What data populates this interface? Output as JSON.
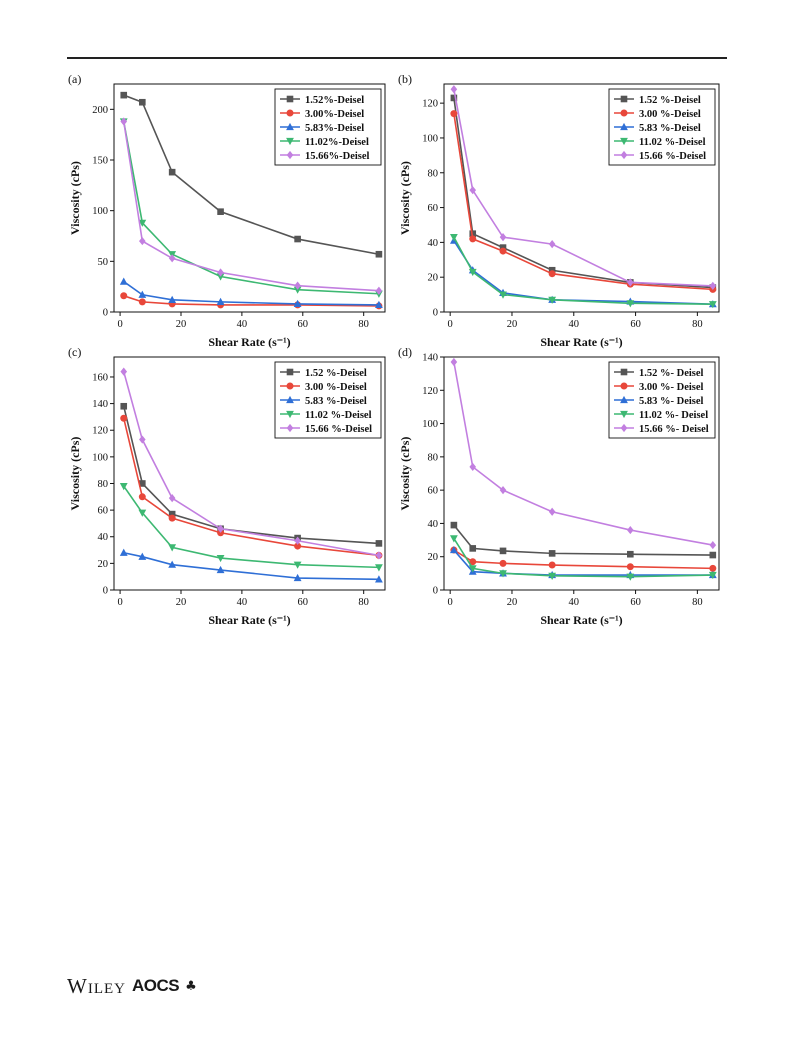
{
  "footer": {
    "publisher": "Wiley",
    "society": "AOCS",
    "society_mark": "♣"
  },
  "chart_data": [
    {
      "type": "line",
      "panel_label": "(a)",
      "xlabel": "Shear Rate (s⁻¹)",
      "ylabel": "Viscosity (cPs)",
      "xlim": [
        -2,
        87
      ],
      "ylim": [
        0,
        225
      ],
      "xticks": [
        0,
        20,
        40,
        60,
        80
      ],
      "yticks": [
        0,
        50,
        100,
        150,
        200
      ],
      "x": [
        1.2,
        7.3,
        17.1,
        33.0,
        58.3,
        85.0
      ],
      "series": [
        {
          "name": "1.52%-Deisel",
          "color": "#555555",
          "marker": "square",
          "values": [
            214,
            207,
            138,
            99,
            72,
            57
          ]
        },
        {
          "name": "3.00%-Deisel",
          "color": "#e8473a",
          "marker": "circle",
          "values": [
            16,
            10,
            8,
            7,
            7,
            6
          ]
        },
        {
          "name": "5.83%-Deisel",
          "color": "#2f6fd6",
          "marker": "triangle-up",
          "values": [
            30,
            17,
            12,
            10,
            8,
            7
          ]
        },
        {
          "name": "11.02%-Deisel",
          "color": "#3db872",
          "marker": "triangle-down",
          "values": [
            188,
            88,
            57,
            35,
            22,
            18
          ]
        },
        {
          "name": "15.66%-Deisel",
          "color": "#c27fe0",
          "marker": "diamond",
          "values": [
            188,
            70,
            53,
            39,
            26,
            21
          ]
        }
      ]
    },
    {
      "type": "line",
      "panel_label": "(b)",
      "xlabel": "Shear Rate (s⁻¹)",
      "ylabel": "Viscosity (cPs)",
      "xlim": [
        -2,
        87
      ],
      "ylim": [
        0,
        131
      ],
      "xticks": [
        0,
        20,
        40,
        60,
        80
      ],
      "yticks": [
        0,
        20,
        40,
        60,
        80,
        100,
        120
      ],
      "x": [
        1.2,
        7.3,
        17.1,
        33.0,
        58.3,
        85.0
      ],
      "series": [
        {
          "name": "1.52 %-Deisel",
          "color": "#555555",
          "marker": "square",
          "values": [
            123,
            45,
            37,
            24,
            17,
            14
          ]
        },
        {
          "name": "3.00 %-Deisel",
          "color": "#e8473a",
          "marker": "circle",
          "values": [
            114,
            42,
            35,
            22,
            16,
            13
          ]
        },
        {
          "name": "5.83 %-Deisel",
          "color": "#2f6fd6",
          "marker": "triangle-up",
          "values": [
            41,
            24,
            11,
            7,
            6,
            4.5
          ]
        },
        {
          "name": "11.02 %-Deisel",
          "color": "#3db872",
          "marker": "triangle-down",
          "values": [
            43,
            23,
            10,
            7,
            5,
            4.5
          ]
        },
        {
          "name": "15.66 %-Deisel",
          "color": "#c27fe0",
          "marker": "diamond",
          "values": [
            128,
            70,
            43,
            39,
            17,
            15
          ]
        }
      ]
    },
    {
      "type": "line",
      "panel_label": "(c)",
      "xlabel": "Shear Rate (s⁻¹)",
      "ylabel": "Viscosity (cPs)",
      "xlim": [
        -2,
        87
      ],
      "ylim": [
        0,
        175
      ],
      "xticks": [
        0,
        20,
        40,
        60,
        80
      ],
      "yticks": [
        0,
        20,
        40,
        60,
        80,
        100,
        120,
        140,
        160
      ],
      "x": [
        1.2,
        7.3,
        17.1,
        33.0,
        58.3,
        85.0
      ],
      "series": [
        {
          "name": "1.52 %-Deisel",
          "color": "#555555",
          "marker": "square",
          "values": [
            138,
            80,
            57,
            46,
            39,
            35
          ]
        },
        {
          "name": "3.00 %-Deisel",
          "color": "#e8473a",
          "marker": "circle",
          "values": [
            129,
            70,
            54,
            43,
            33,
            26
          ]
        },
        {
          "name": "5.83 %-Deisel",
          "color": "#2f6fd6",
          "marker": "triangle-up",
          "values": [
            28,
            25,
            19,
            15,
            9,
            8
          ]
        },
        {
          "name": "11.02 %-Deisel",
          "color": "#3db872",
          "marker": "triangle-down",
          "values": [
            78,
            58,
            32,
            24,
            19,
            17
          ]
        },
        {
          "name": "15.66 %-Deisel",
          "color": "#c27fe0",
          "marker": "diamond",
          "values": [
            164,
            113,
            69,
            46,
            37,
            26
          ]
        }
      ]
    },
    {
      "type": "line",
      "panel_label": "(d)",
      "xlabel": "Shear Rate (s⁻¹)",
      "ylabel": "Viscosity (cPs)",
      "xlim": [
        -2,
        87
      ],
      "ylim": [
        0,
        140
      ],
      "xticks": [
        0,
        20,
        40,
        60,
        80
      ],
      "yticks": [
        0,
        20,
        40,
        60,
        80,
        100,
        120,
        140
      ],
      "x": [
        1.2,
        7.3,
        17.1,
        33.0,
        58.3,
        85.0
      ],
      "series": [
        {
          "name": "1.52 %- Deisel",
          "color": "#555555",
          "marker": "square",
          "values": [
            39,
            25,
            23.5,
            22,
            21.5,
            21
          ]
        },
        {
          "name": "3.00 %- Deisel",
          "color": "#e8473a",
          "marker": "circle",
          "values": [
            24,
            17,
            16,
            15,
            14,
            13
          ]
        },
        {
          "name": "5.83 %- Deisel",
          "color": "#2f6fd6",
          "marker": "triangle-up",
          "values": [
            24,
            11,
            10,
            9,
            9,
            9
          ]
        },
        {
          "name": "11.02 %- Deisel",
          "color": "#3db872",
          "marker": "triangle-down",
          "values": [
            31,
            13,
            10,
            8.5,
            8,
            9
          ]
        },
        {
          "name": "15.66 %- Deisel",
          "color": "#c27fe0",
          "marker": "diamond",
          "values": [
            137,
            74,
            60,
            47,
            36,
            27
          ]
        }
      ]
    }
  ]
}
